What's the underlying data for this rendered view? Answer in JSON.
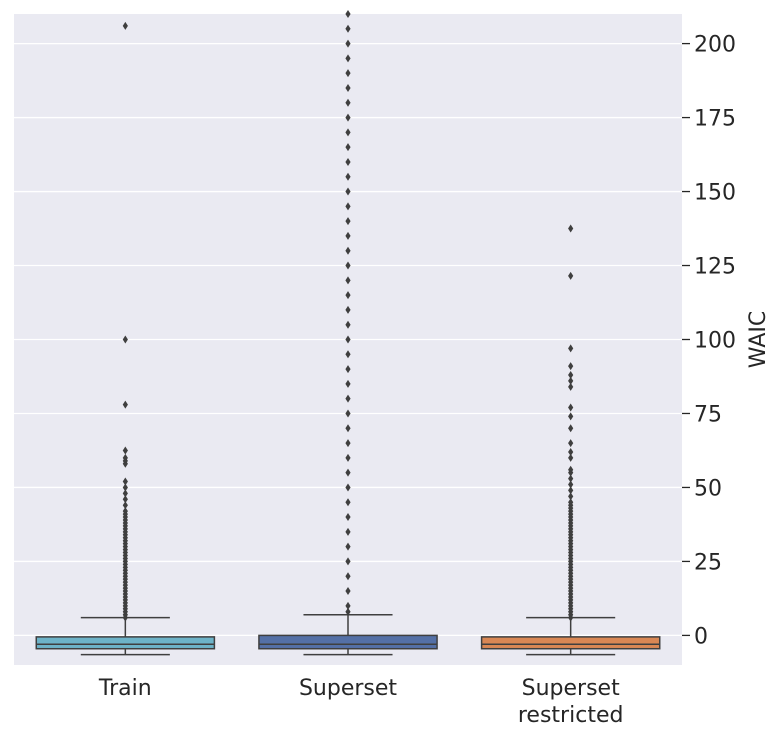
{
  "chart_data": {
    "type": "box",
    "title": "",
    "xlabel": "",
    "ylabel": "WAIC",
    "y_axis_side": "right",
    "ylim": [
      -10,
      210
    ],
    "yticks": [
      0,
      25,
      50,
      75,
      100,
      125,
      150,
      175,
      200
    ],
    "grid": true,
    "background": "#EAEAF2",
    "categories": [
      "Train",
      "Superset",
      "Superset\nrestricted"
    ],
    "boxes": [
      {
        "category": "Train",
        "color": "#6DB3C8",
        "whisker_low": -6.5,
        "q1": -4.5,
        "median": -3.0,
        "q3": -0.5,
        "whisker_high": 6.0,
        "outliers": [
          6,
          7,
          8,
          9,
          10,
          11,
          12,
          13,
          14,
          15,
          16,
          17,
          18,
          19,
          20,
          21,
          22,
          23,
          24,
          25,
          26,
          27,
          28,
          29,
          30,
          31,
          32,
          33,
          34,
          35,
          36,
          37,
          38,
          39,
          40,
          41,
          42,
          44,
          46,
          48,
          50,
          52,
          58,
          59,
          60,
          62.5,
          78,
          100,
          206
        ]
      },
      {
        "category": "Superset",
        "color": "#5470A6",
        "whisker_low": -6.5,
        "q1": -4.5,
        "median": -3.0,
        "q3": 0.0,
        "whisker_high": 7.0,
        "outliers": [
          8,
          10,
          15,
          20,
          25,
          30,
          35,
          40,
          45,
          50,
          55,
          60,
          65,
          70,
          75,
          80,
          85,
          90,
          95,
          100,
          105,
          110,
          115,
          120,
          125,
          130,
          135,
          140,
          145,
          150,
          155,
          160,
          165,
          170,
          175,
          180,
          185,
          190,
          195,
          200,
          205,
          210
        ]
      },
      {
        "category": "Superset\nrestricted",
        "color": "#D98754",
        "whisker_low": -6.5,
        "q1": -4.5,
        "median": -3.0,
        "q3": -0.5,
        "whisker_high": 6.0,
        "outliers": [
          6,
          7,
          8,
          9,
          10,
          11,
          12,
          13,
          14,
          15,
          16,
          17,
          18,
          19,
          20,
          21,
          22,
          23,
          24,
          25,
          26,
          27,
          28,
          29,
          30,
          31,
          32,
          33,
          34,
          35,
          36,
          37,
          38,
          39,
          40,
          41,
          42,
          43,
          44,
          45,
          47,
          49,
          51,
          53,
          55,
          56,
          60,
          62,
          65,
          70,
          74,
          77,
          84,
          86,
          88,
          91,
          97,
          121.5,
          137.5
        ]
      }
    ]
  }
}
